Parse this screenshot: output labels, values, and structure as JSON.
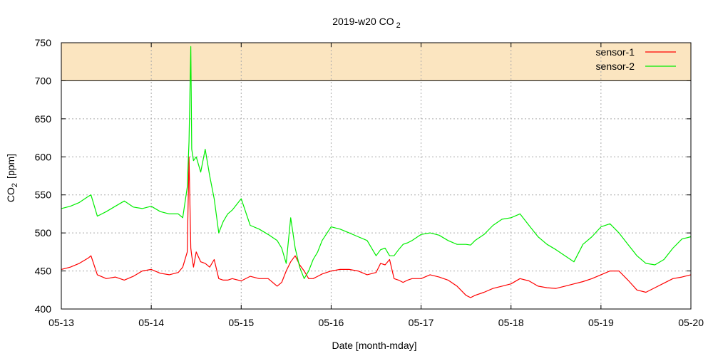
{
  "chart_data": {
    "type": "line",
    "title_main": "2019-w20 CO",
    "title_sub": "2",
    "xlabel": "Date [month-mday]",
    "ylabel_main": "CO",
    "ylabel_sub": "2",
    "ylabel_rest": "[ppm]",
    "ylim": [
      400,
      750
    ],
    "yticks": [
      "400",
      "450",
      "500",
      "550",
      "600",
      "650",
      "700",
      "750"
    ],
    "x_range": [
      "05-13",
      "05-20"
    ],
    "xticks": [
      "05-13",
      "05-14",
      "05-15",
      "05-16",
      "05-17",
      "05-18",
      "05-19",
      "05-20"
    ],
    "grid": true,
    "legend_position": "top-right",
    "threshold_band": {
      "from": 700,
      "to": 750,
      "color": "#fbe5c0"
    },
    "series": [
      {
        "name": "sensor-1",
        "color": "#ff0000",
        "x": [
          0,
          0.1,
          0.2,
          0.3,
          0.33,
          0.4,
          0.5,
          0.6,
          0.7,
          0.8,
          0.9,
          1.0,
          1.1,
          1.2,
          1.3,
          1.35,
          1.4,
          1.42,
          1.44,
          1.45,
          1.47,
          1.5,
          1.55,
          1.6,
          1.65,
          1.7,
          1.75,
          1.8,
          1.85,
          1.9,
          2.0,
          2.1,
          2.2,
          2.3,
          2.4,
          2.45,
          2.5,
          2.55,
          2.6,
          2.65,
          2.7,
          2.75,
          2.8,
          2.85,
          2.9,
          3.0,
          3.1,
          3.2,
          3.3,
          3.4,
          3.5,
          3.55,
          3.6,
          3.65,
          3.7,
          3.75,
          3.8,
          3.85,
          3.9,
          4.0,
          4.1,
          4.2,
          4.3,
          4.4,
          4.5,
          4.55,
          4.6,
          4.7,
          4.8,
          4.9,
          5.0,
          5.1,
          5.2,
          5.3,
          5.4,
          5.5,
          5.6,
          5.7,
          5.8,
          5.9,
          6.0,
          6.1,
          6.2,
          6.3,
          6.4,
          6.5,
          6.6,
          6.7,
          6.8,
          6.9,
          7.0
        ],
        "y": [
          452,
          455,
          460,
          467,
          470,
          445,
          440,
          442,
          438,
          443,
          450,
          452,
          447,
          445,
          448,
          455,
          475,
          600,
          480,
          470,
          455,
          475,
          462,
          460,
          455,
          465,
          440,
          438,
          438,
          440,
          437,
          443,
          440,
          440,
          430,
          435,
          450,
          462,
          470,
          458,
          450,
          440,
          440,
          443,
          446,
          450,
          452,
          452,
          450,
          445,
          448,
          460,
          458,
          465,
          440,
          438,
          435,
          438,
          440,
          440,
          445,
          442,
          438,
          430,
          418,
          415,
          418,
          422,
          427,
          430,
          433,
          440,
          437,
          430,
          428,
          427,
          430,
          433,
          436,
          440,
          445,
          450,
          450,
          438,
          425,
          422,
          428,
          434,
          440,
          442,
          445
        ]
      },
      {
        "name": "sensor-2",
        "color": "#00ee00",
        "x": [
          0,
          0.1,
          0.2,
          0.3,
          0.33,
          0.4,
          0.5,
          0.6,
          0.7,
          0.8,
          0.9,
          1.0,
          1.1,
          1.2,
          1.3,
          1.35,
          1.4,
          1.42,
          1.44,
          1.45,
          1.47,
          1.5,
          1.55,
          1.6,
          1.65,
          1.7,
          1.75,
          1.8,
          1.85,
          1.9,
          2.0,
          2.1,
          2.2,
          2.3,
          2.4,
          2.45,
          2.5,
          2.55,
          2.6,
          2.65,
          2.7,
          2.75,
          2.8,
          2.85,
          2.9,
          3.0,
          3.1,
          3.2,
          3.3,
          3.4,
          3.5,
          3.55,
          3.6,
          3.65,
          3.7,
          3.75,
          3.8,
          3.85,
          3.9,
          4.0,
          4.1,
          4.2,
          4.3,
          4.4,
          4.5,
          4.55,
          4.6,
          4.7,
          4.8,
          4.9,
          5.0,
          5.1,
          5.2,
          5.3,
          5.4,
          5.5,
          5.6,
          5.7,
          5.8,
          5.9,
          6.0,
          6.1,
          6.2,
          6.3,
          6.4,
          6.5,
          6.6,
          6.7,
          6.8,
          6.9,
          7.0
        ],
        "y": [
          532,
          535,
          540,
          548,
          550,
          522,
          528,
          535,
          542,
          534,
          532,
          535,
          528,
          525,
          525,
          520,
          560,
          620,
          745,
          610,
          595,
          600,
          580,
          610,
          575,
          545,
          500,
          515,
          525,
          530,
          545,
          510,
          505,
          498,
          490,
          480,
          460,
          520,
          480,
          455,
          440,
          450,
          465,
          475,
          490,
          508,
          505,
          500,
          495,
          490,
          470,
          478,
          480,
          470,
          470,
          478,
          485,
          487,
          490,
          498,
          500,
          497,
          490,
          485,
          485,
          484,
          490,
          498,
          510,
          518,
          520,
          525,
          510,
          495,
          485,
          478,
          470,
          462,
          485,
          495,
          508,
          512,
          500,
          485,
          470,
          460,
          458,
          465,
          480,
          492,
          495
        ]
      }
    ]
  }
}
